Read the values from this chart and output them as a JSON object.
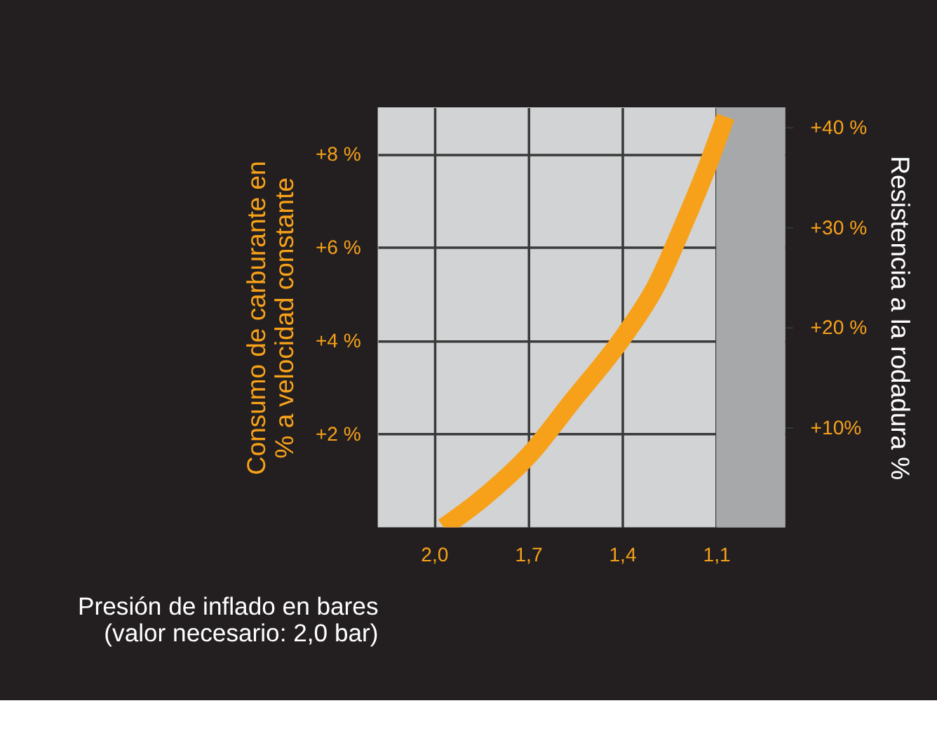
{
  "chart_data": {
    "type": "line",
    "xlabel": "Presión de inflado en bares\n(valor necesario: 2,0 bar)",
    "ylabel": "Consumo de carburante en\n% a velocidad constante",
    "y2label": "Resistencia a la rodadura %",
    "x": [
      1.97,
      1.85,
      1.69,
      1.56,
      1.4,
      1.29,
      1.21,
      1.13,
      1.07
    ],
    "series": [
      {
        "color": "#f7a11a",
        "values": [
          0,
          0.6,
          1.6,
          2.7,
          4.05,
          5.2,
          6.4,
          7.7,
          8.8
        ]
      }
    ],
    "xlim": [
      2.18,
      0.88
    ],
    "xticks": [
      {
        "value": 2.0,
        "label": "2,0"
      },
      {
        "value": 1.7,
        "label": "1,7"
      },
      {
        "value": 1.4,
        "label": "1,4"
      },
      {
        "value": 1.1,
        "label": "1,1"
      }
    ],
    "ylim": [
      0,
      9
    ],
    "yticks": [
      {
        "value": 2,
        "label": "+2 %"
      },
      {
        "value": 4,
        "label": "+4 %"
      },
      {
        "value": 6,
        "label": "+6 %"
      },
      {
        "value": 8,
        "label": "+8 %"
      }
    ],
    "y2lim": [
      0,
      42
    ],
    "y2ticks": [
      {
        "value": 10,
        "label": "+10%"
      },
      {
        "value": 20,
        "label": "+20 %"
      },
      {
        "value": 30,
        "label": "+30 %"
      },
      {
        "value": 40,
        "label": "+40 %"
      }
    ],
    "bands": [
      {
        "axis": "x",
        "from": 1.1,
        "to": 0.88,
        "color": "#a7a8aa"
      }
    ],
    "grid": true,
    "marker": "none",
    "line_style": "solid"
  }
}
